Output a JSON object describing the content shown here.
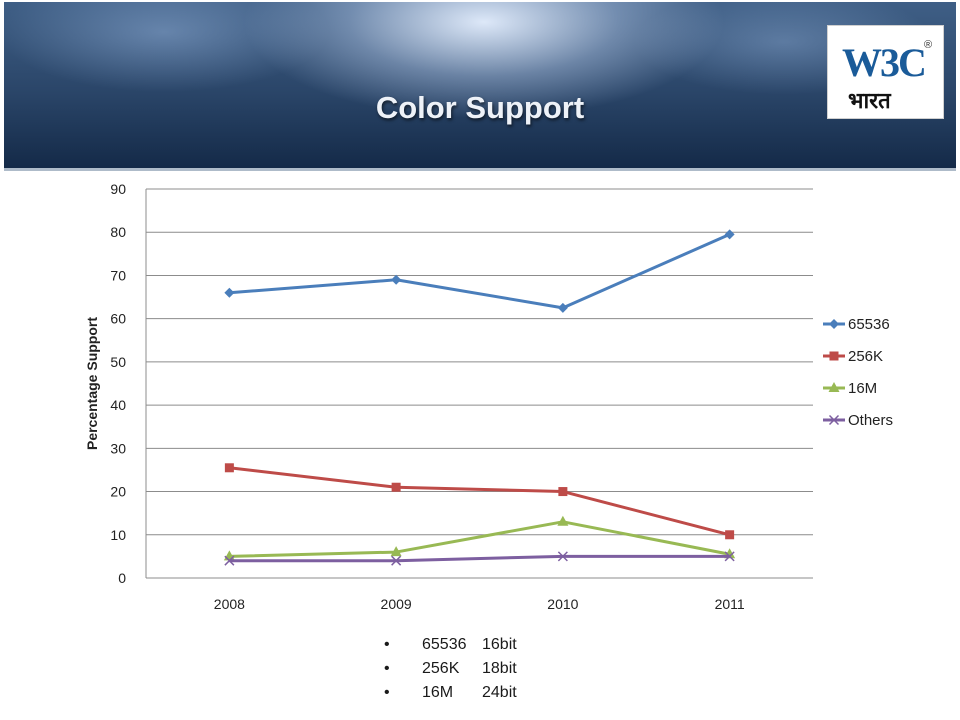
{
  "slide": {
    "title": "Color Support"
  },
  "logo": {
    "text_main": "W3C",
    "text_sub": "भारत",
    "mark": "®"
  },
  "chart_data": {
    "type": "line",
    "title": "",
    "xlabel": "",
    "ylabel": "Percentage Support",
    "categories": [
      "2008",
      "2009",
      "2010",
      "2011"
    ],
    "ylim": [
      0,
      90
    ],
    "yticks": [
      0,
      10,
      20,
      30,
      40,
      50,
      60,
      70,
      80,
      90
    ],
    "grid": true,
    "legend_position": "right",
    "series": [
      {
        "name": "65536",
        "values": [
          66,
          69,
          62.5,
          79.5
        ],
        "color": "#4a7ebb",
        "marker": "diamond"
      },
      {
        "name": "256K",
        "values": [
          25.5,
          21,
          20,
          10
        ],
        "color": "#be4b48",
        "marker": "square"
      },
      {
        "name": "16M",
        "values": [
          5,
          6,
          13,
          5.5
        ],
        "color": "#98b954",
        "marker": "triangle"
      },
      {
        "name": "Others",
        "values": [
          4,
          4,
          5,
          5
        ],
        "color": "#7d5fa0",
        "marker": "x"
      }
    ]
  },
  "bullets": [
    {
      "key": "65536",
      "value": "16bit"
    },
    {
      "key": "256K",
      "value": "18bit"
    },
    {
      "key": "16M",
      "value": "24bit"
    }
  ]
}
